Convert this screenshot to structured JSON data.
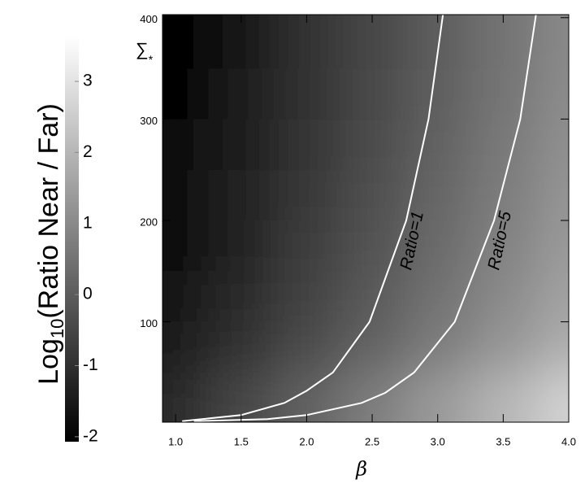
{
  "chart_data": {
    "type": "heatmap",
    "x_label": "β",
    "y_label": {
      "base": "∑",
      "subscript": "*"
    },
    "colorbar_label": {
      "base": "Log",
      "subscript": "10",
      "rest": "(Ratio Near / Far)"
    },
    "xlim": [
      0.9,
      4.0
    ],
    "ylim": [
      1,
      403
    ],
    "xticks": [
      {
        "value": 1,
        "label": "1.0"
      },
      1.5,
      {
        "value": 2,
        "label": "2.0"
      },
      2.5,
      {
        "value": 3,
        "label": "3.0"
      },
      3.5,
      {
        "value": 4,
        "label": "4.0"
      }
    ],
    "yticks": [
      100,
      200,
      300,
      400
    ],
    "clim": [
      -2.07,
      3.63
    ],
    "cticks": [
      -2,
      -1,
      0,
      1,
      2,
      3
    ],
    "x": [
      1.0,
      1.5,
      2.0,
      2.5,
      3.0,
      3.5,
      4.0
    ],
    "y": [
      25,
      75,
      125,
      175,
      225,
      275,
      325,
      375
    ],
    "z": [
      [
        -1.13,
        -0.5,
        0.13,
        0.75,
        1.38,
        2.0,
        2.63
      ],
      [
        -1.49,
        -0.94,
        -0.39,
        0.17,
        0.72,
        1.27,
        1.82
      ],
      [
        -1.66,
        -1.12,
        -0.59,
        -0.05,
        0.48,
        1.02,
        1.55
      ],
      [
        -1.79,
        -1.26,
        -0.74,
        -0.21,
        0.32,
        0.84,
        1.37
      ],
      [
        -1.85,
        -1.34,
        -0.82,
        -0.31,
        0.21,
        0.72,
        1.24
      ],
      [
        -1.92,
        -1.41,
        -0.9,
        -0.39,
        0.12,
        0.63,
        1.14
      ],
      [
        -1.95,
        -1.45,
        -0.95,
        -0.45,
        0.05,
        0.55,
        1.05
      ],
      [
        -2.0,
        -1.5,
        -1.0,
        -0.5,
        0.0,
        0.5,
        1.0
      ]
    ],
    "contours": [
      {
        "name": "Ratio=1",
        "color": "#ffffff",
        "x": [
          1.05,
          1.2,
          1.5,
          1.83,
          2.0,
          2.2,
          2.48,
          2.76,
          2.93,
          3.04
        ],
        "y": [
          2,
          4,
          8,
          20,
          32,
          50,
          100,
          200,
          300,
          403
        ]
      },
      {
        "name": "Ratio=5",
        "color": "#ffffff",
        "x": [
          1.14,
          1.7,
          2.0,
          2.42,
          2.6,
          2.82,
          3.13,
          3.43,
          3.63,
          3.75
        ],
        "y": [
          2,
          4,
          8,
          20,
          30,
          50,
          100,
          200,
          300,
          403
        ]
      }
    ]
  }
}
